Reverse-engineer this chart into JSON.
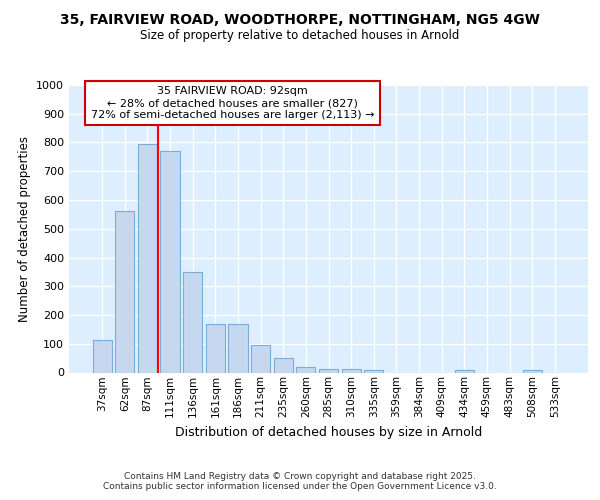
{
  "title_line1": "35, FAIRVIEW ROAD, WOODTHORPE, NOTTINGHAM, NG5 4GW",
  "title_line2": "Size of property relative to detached houses in Arnold",
  "xlabel": "Distribution of detached houses by size in Arnold",
  "ylabel": "Number of detached properties",
  "categories": [
    "37sqm",
    "62sqm",
    "87sqm",
    "111sqm",
    "136sqm",
    "161sqm",
    "186sqm",
    "211sqm",
    "235sqm",
    "260sqm",
    "285sqm",
    "310sqm",
    "335sqm",
    "359sqm",
    "384sqm",
    "409sqm",
    "434sqm",
    "459sqm",
    "483sqm",
    "508sqm",
    "533sqm"
  ],
  "values": [
    113,
    563,
    795,
    770,
    350,
    168,
    168,
    97,
    52,
    18,
    13,
    13,
    10,
    0,
    0,
    0,
    7,
    0,
    0,
    7,
    0
  ],
  "bar_color": "#c5d8ef",
  "bar_edge_color": "#7aaed6",
  "annotation_text": "35 FAIRVIEW ROAD: 92sqm\n← 28% of detached houses are smaller (827)\n72% of semi-detached houses are larger (2,113) →",
  "annotation_box_color": "#ffffff",
  "annotation_box_edge_color": "#cc0000",
  "footer_line1": "Contains HM Land Registry data © Crown copyright and database right 2025.",
  "footer_line2": "Contains public sector information licensed under the Open Government Licence v3.0.",
  "background_color": "#ffffff",
  "plot_background_color": "#ddeeff",
  "grid_color": "#ffffff",
  "ylim": [
    0,
    1000
  ],
  "yticks": [
    0,
    100,
    200,
    300,
    400,
    500,
    600,
    700,
    800,
    900,
    1000
  ],
  "red_line_x": 2.45
}
